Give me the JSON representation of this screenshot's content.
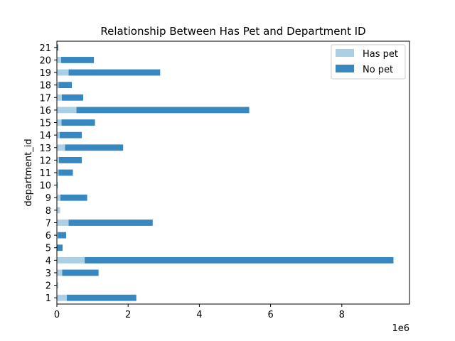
{
  "chart_data": {
    "type": "bar",
    "orientation": "horizontal",
    "stacked": true,
    "title": "Relationship Between Has Pet and Department ID",
    "xlabel": "",
    "ylabel": "department_id",
    "x_offset_label": "1e6",
    "xlim": [
      0,
      9.9
    ],
    "x_ticks": [
      0,
      2,
      4,
      6,
      8
    ],
    "categories": [
      "1",
      "2",
      "3",
      "4",
      "5",
      "6",
      "7",
      "8",
      "9",
      "10",
      "11",
      "12",
      "13",
      "14",
      "15",
      "16",
      "17",
      "18",
      "19",
      "20",
      "21"
    ],
    "series": [
      {
        "name": "Has pet",
        "color": "#abd0e6",
        "values": [
          0.28,
          0.02,
          0.15,
          0.78,
          0.01,
          0.03,
          0.33,
          0.09,
          0.1,
          0.0,
          0.05,
          0.06,
          0.23,
          0.08,
          0.13,
          0.55,
          0.14,
          0.05,
          0.33,
          0.12,
          0.01
        ]
      },
      {
        "name": "No pet",
        "color": "#3787c0",
        "values": [
          1.95,
          0.01,
          1.02,
          8.67,
          0.15,
          0.23,
          2.36,
          0.0,
          0.75,
          0.02,
          0.4,
          0.64,
          1.63,
          0.62,
          0.94,
          4.85,
          0.6,
          0.37,
          2.57,
          0.92,
          0.03
        ]
      }
    ],
    "legend_position": "top-right",
    "grid": false
  }
}
